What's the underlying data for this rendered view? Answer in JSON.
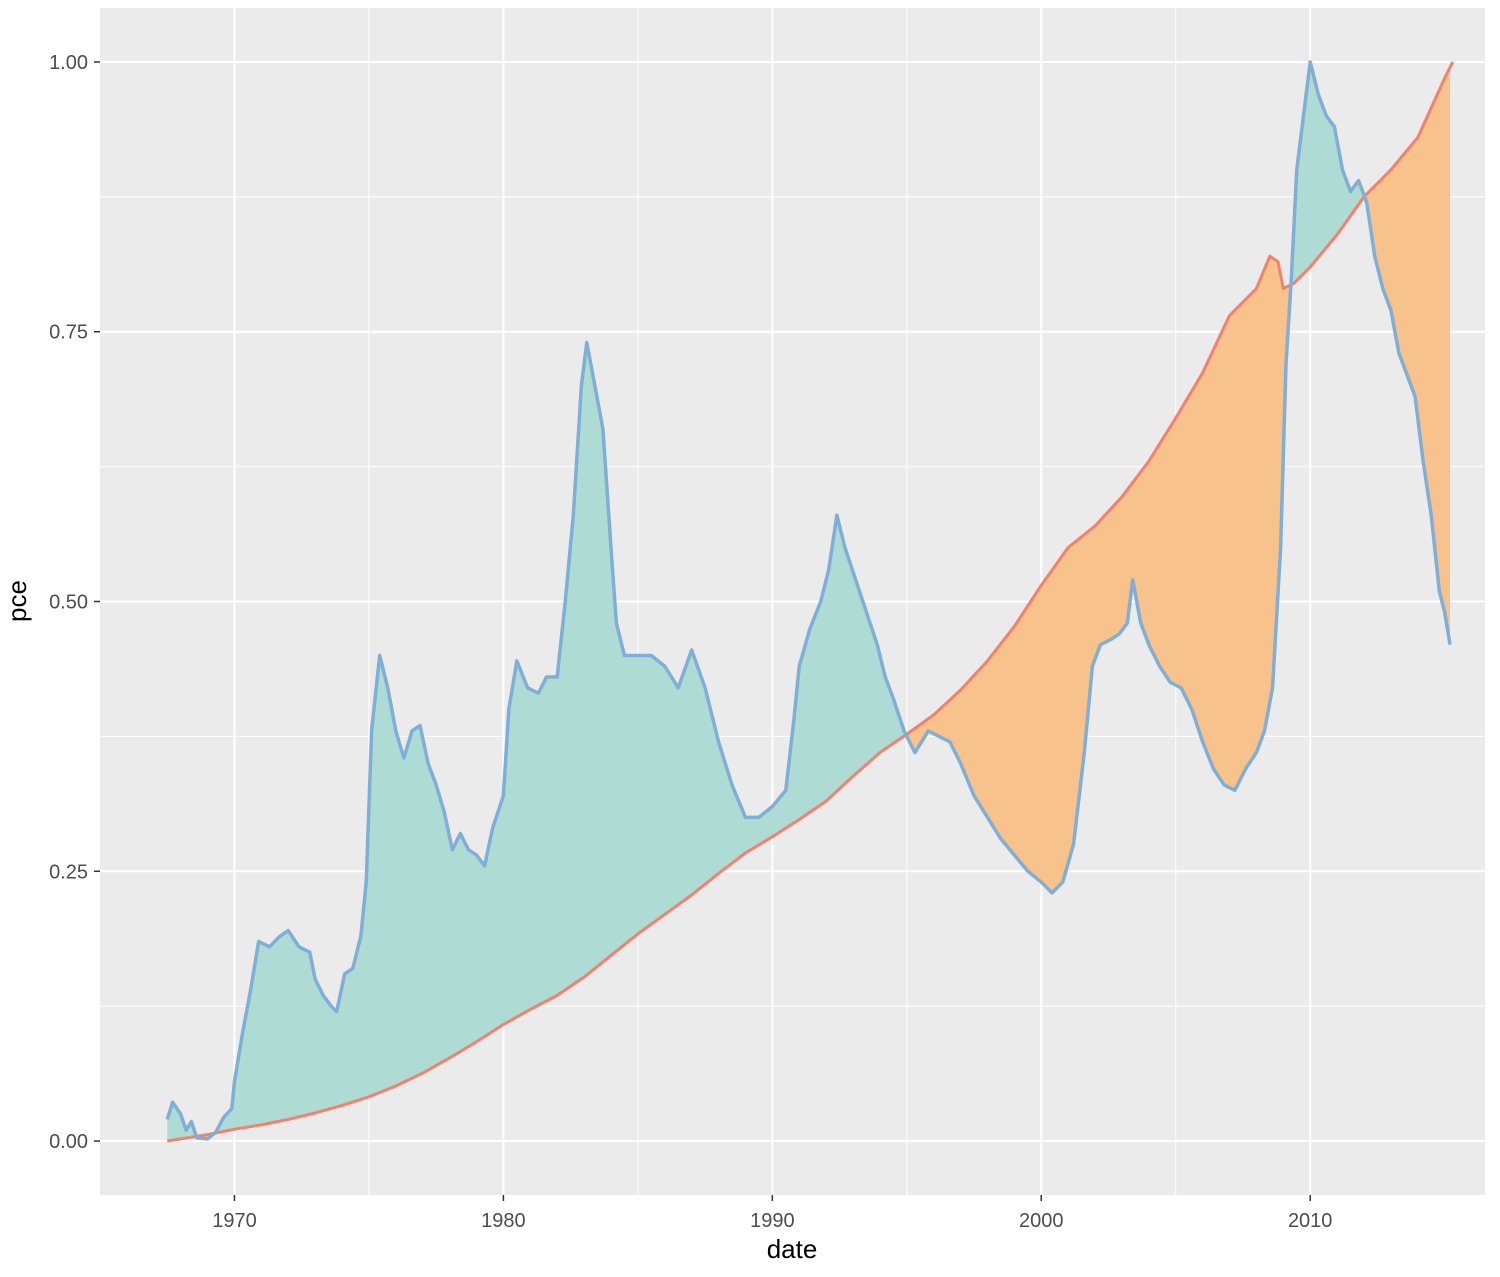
{
  "chart_data": {
    "type": "area",
    "title": "",
    "xlabel": "date",
    "ylabel": "pce",
    "xlim": [
      1965.0,
      2016.5
    ],
    "ylim": [
      -0.05,
      1.05
    ],
    "x_ticks": [
      1970,
      1980,
      1990,
      2000,
      2010
    ],
    "x_tick_labels": [
      "1970",
      "1980",
      "1990",
      "2000",
      "2010"
    ],
    "y_ticks": [
      0.0,
      0.25,
      0.5,
      0.75,
      1.0
    ],
    "y_tick_labels": [
      "0.00",
      "0.25",
      "0.50",
      "0.75",
      "1.00"
    ],
    "grid": true,
    "legend": "none",
    "colors": {
      "panel_background": "#ebebeb",
      "grid_line": "#ffffff",
      "series_line": "#7fafd6",
      "trend_line": "#f5806e",
      "fill_above_trend": "#aedbd3",
      "fill_below_trend": "#f7c28c"
    },
    "series": [
      {
        "values": [
          [
            1967.5,
            0.02
          ],
          [
            1967.7,
            0.036
          ],
          [
            1968.0,
            0.025
          ],
          [
            1968.2,
            0.01
          ],
          [
            1968.4,
            0.018
          ],
          [
            1968.6,
            0.003
          ],
          [
            1969.0,
            0.002
          ],
          [
            1969.3,
            0.008
          ],
          [
            1969.6,
            0.022
          ],
          [
            1969.9,
            0.03
          ],
          [
            1970.0,
            0.055
          ],
          [
            1970.3,
            0.1
          ],
          [
            1970.6,
            0.14
          ],
          [
            1970.9,
            0.185
          ],
          [
            1971.3,
            0.18
          ],
          [
            1971.7,
            0.19
          ],
          [
            1972.0,
            0.195
          ],
          [
            1972.4,
            0.18
          ],
          [
            1972.8,
            0.175
          ],
          [
            1973.0,
            0.15
          ],
          [
            1973.3,
            0.135
          ],
          [
            1973.6,
            0.125
          ],
          [
            1973.8,
            0.12
          ],
          [
            1974.1,
            0.155
          ],
          [
            1974.4,
            0.16
          ],
          [
            1974.7,
            0.19
          ],
          [
            1974.9,
            0.24
          ],
          [
            1975.1,
            0.38
          ],
          [
            1975.4,
            0.45
          ],
          [
            1975.7,
            0.42
          ],
          [
            1976.0,
            0.38
          ],
          [
            1976.3,
            0.355
          ],
          [
            1976.6,
            0.38
          ],
          [
            1976.9,
            0.385
          ],
          [
            1977.2,
            0.35
          ],
          [
            1977.5,
            0.33
          ],
          [
            1977.8,
            0.305
          ],
          [
            1978.1,
            0.27
          ],
          [
            1978.4,
            0.285
          ],
          [
            1978.7,
            0.27
          ],
          [
            1979.0,
            0.265
          ],
          [
            1979.3,
            0.255
          ],
          [
            1979.6,
            0.29
          ],
          [
            1980.0,
            0.32
          ],
          [
            1980.2,
            0.4
          ],
          [
            1980.5,
            0.445
          ],
          [
            1980.9,
            0.42
          ],
          [
            1981.3,
            0.415
          ],
          [
            1981.6,
            0.43
          ],
          [
            1982.0,
            0.43
          ],
          [
            1982.3,
            0.5
          ],
          [
            1982.6,
            0.58
          ],
          [
            1982.9,
            0.7
          ],
          [
            1983.1,
            0.74
          ],
          [
            1983.4,
            0.7
          ],
          [
            1983.7,
            0.66
          ],
          [
            1984.0,
            0.55
          ],
          [
            1984.2,
            0.48
          ],
          [
            1984.5,
            0.45
          ],
          [
            1985.0,
            0.45
          ],
          [
            1985.5,
            0.45
          ],
          [
            1986.0,
            0.44
          ],
          [
            1986.5,
            0.42
          ],
          [
            1987.0,
            0.455
          ],
          [
            1987.5,
            0.42
          ],
          [
            1988.0,
            0.37
          ],
          [
            1988.5,
            0.33
          ],
          [
            1989.0,
            0.3
          ],
          [
            1989.5,
            0.3
          ],
          [
            1990.0,
            0.31
          ],
          [
            1990.5,
            0.325
          ],
          [
            1990.8,
            0.39
          ],
          [
            1991.0,
            0.44
          ],
          [
            1991.4,
            0.475
          ],
          [
            1991.8,
            0.5
          ],
          [
            1992.1,
            0.53
          ],
          [
            1992.4,
            0.58
          ],
          [
            1992.7,
            0.55
          ],
          [
            1993.1,
            0.52
          ],
          [
            1993.5,
            0.49
          ],
          [
            1993.9,
            0.46
          ],
          [
            1994.2,
            0.43
          ],
          [
            1994.5,
            0.41
          ],
          [
            1994.9,
            0.38
          ],
          [
            1995.3,
            0.36
          ],
          [
            1995.8,
            0.38
          ],
          [
            1996.2,
            0.375
          ],
          [
            1996.6,
            0.37
          ],
          [
            1997.0,
            0.35
          ],
          [
            1997.5,
            0.32
          ],
          [
            1998.0,
            0.3
          ],
          [
            1998.5,
            0.28
          ],
          [
            1999.0,
            0.265
          ],
          [
            1999.5,
            0.25
          ],
          [
            2000.0,
            0.24
          ],
          [
            2000.4,
            0.23
          ],
          [
            2000.8,
            0.24
          ],
          [
            2001.2,
            0.275
          ],
          [
            2001.6,
            0.36
          ],
          [
            2001.9,
            0.44
          ],
          [
            2002.2,
            0.46
          ],
          [
            2002.6,
            0.465
          ],
          [
            2002.9,
            0.47
          ],
          [
            2003.2,
            0.48
          ],
          [
            2003.4,
            0.52
          ],
          [
            2003.7,
            0.48
          ],
          [
            2004.0,
            0.46
          ],
          [
            2004.4,
            0.44
          ],
          [
            2004.8,
            0.425
          ],
          [
            2005.2,
            0.42
          ],
          [
            2005.6,
            0.4
          ],
          [
            2006.0,
            0.37
          ],
          [
            2006.4,
            0.345
          ],
          [
            2006.8,
            0.33
          ],
          [
            2007.2,
            0.325
          ],
          [
            2007.6,
            0.345
          ],
          [
            2008.0,
            0.36
          ],
          [
            2008.3,
            0.38
          ],
          [
            2008.6,
            0.42
          ],
          [
            2008.9,
            0.55
          ],
          [
            2009.1,
            0.72
          ],
          [
            2009.3,
            0.8
          ],
          [
            2009.5,
            0.9
          ],
          [
            2009.8,
            0.96
          ],
          [
            2010.0,
            1.0
          ],
          [
            2010.3,
            0.97
          ],
          [
            2010.6,
            0.95
          ],
          [
            2010.9,
            0.94
          ],
          [
            2011.2,
            0.9
          ],
          [
            2011.5,
            0.88
          ],
          [
            2011.8,
            0.89
          ],
          [
            2012.1,
            0.87
          ],
          [
            2012.4,
            0.82
          ],
          [
            2012.7,
            0.79
          ],
          [
            2013.0,
            0.77
          ],
          [
            2013.3,
            0.73
          ],
          [
            2013.6,
            0.71
          ],
          [
            2013.9,
            0.69
          ],
          [
            2014.2,
            0.63
          ],
          [
            2014.5,
            0.58
          ],
          [
            2014.8,
            0.51
          ],
          [
            2015.0,
            0.49
          ],
          [
            2015.2,
            0.46
          ]
        ]
      },
      {
        "values": [
          [
            1967.5,
            0.0
          ],
          [
            1968.0,
            0.002
          ],
          [
            1969.0,
            0.006
          ],
          [
            1970.0,
            0.011
          ],
          [
            1971.0,
            0.015
          ],
          [
            1972.0,
            0.02
          ],
          [
            1973.0,
            0.026
          ],
          [
            1974.0,
            0.033
          ],
          [
            1975.0,
            0.041
          ],
          [
            1976.0,
            0.051
          ],
          [
            1977.0,
            0.063
          ],
          [
            1978.0,
            0.077
          ],
          [
            1979.0,
            0.092
          ],
          [
            1980.0,
            0.108
          ],
          [
            1981.0,
            0.122
          ],
          [
            1982.0,
            0.135
          ],
          [
            1983.0,
            0.152
          ],
          [
            1984.0,
            0.172
          ],
          [
            1985.0,
            0.192
          ],
          [
            1986.0,
            0.21
          ],
          [
            1987.0,
            0.228
          ],
          [
            1988.0,
            0.248
          ],
          [
            1989.0,
            0.267
          ],
          [
            1990.0,
            0.282
          ],
          [
            1991.0,
            0.298
          ],
          [
            1992.0,
            0.315
          ],
          [
            1993.0,
            0.338
          ],
          [
            1994.0,
            0.36
          ],
          [
            1995.0,
            0.377
          ],
          [
            1996.0,
            0.395
          ],
          [
            1997.0,
            0.418
          ],
          [
            1998.0,
            0.445
          ],
          [
            1999.0,
            0.477
          ],
          [
            2000.0,
            0.515
          ],
          [
            2001.0,
            0.55
          ],
          [
            2002.0,
            0.57
          ],
          [
            2003.0,
            0.597
          ],
          [
            2004.0,
            0.63
          ],
          [
            2005.0,
            0.67
          ],
          [
            2006.0,
            0.712
          ],
          [
            2007.0,
            0.765
          ],
          [
            2008.0,
            0.79
          ],
          [
            2008.5,
            0.82
          ],
          [
            2008.8,
            0.815
          ],
          [
            2009.0,
            0.79
          ],
          [
            2009.4,
            0.795
          ],
          [
            2010.0,
            0.81
          ],
          [
            2011.0,
            0.84
          ],
          [
            2012.0,
            0.875
          ],
          [
            2013.0,
            0.9
          ],
          [
            2014.0,
            0.93
          ],
          [
            2015.0,
            0.985
          ],
          [
            2015.3,
            1.0
          ]
        ]
      }
    ]
  }
}
